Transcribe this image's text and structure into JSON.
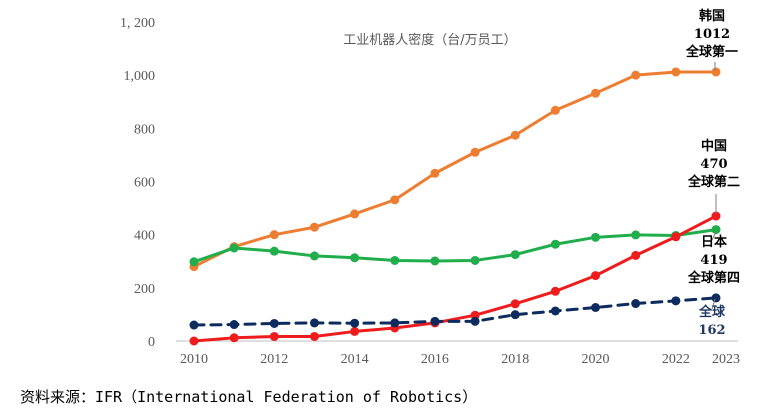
{
  "chart_data": {
    "type": "line",
    "title": "工业机器人密度（台/万员工）",
    "x": [
      2010,
      2011,
      2012,
      2013,
      2014,
      2015,
      2016,
      2017,
      2018,
      2019,
      2020,
      2021,
      2022,
      2023
    ],
    "xticks": [
      "2010",
      "2012",
      "2014",
      "2016",
      "2018",
      "2020",
      "2022",
      "2023"
    ],
    "ylim": [
      0,
      1200
    ],
    "yticks": [
      "0",
      "200",
      "400",
      "600",
      "800",
      "1,000",
      "1, 200"
    ],
    "series": [
      {
        "name": "韩国",
        "color": "#ED7D31",
        "dashed": false,
        "values": [
          280,
          355,
          400,
          428,
          478,
          531,
          631,
          710,
          774,
          868,
          932,
          1000,
          1012,
          1012
        ]
      },
      {
        "name": "日本",
        "color": "#1FAE4B",
        "dashed": false,
        "values": [
          298,
          350,
          338,
          320,
          313,
          303,
          301,
          303,
          325,
          364,
          390,
          399,
          397,
          419
        ]
      },
      {
        "name": "中国",
        "color": "#EE1C1C",
        "dashed": false,
        "values": [
          0,
          12,
          17,
          17,
          36,
          49,
          68,
          97,
          140,
          187,
          246,
          322,
          392,
          470
        ]
      },
      {
        "name": "全球",
        "color": "#0D2B5E",
        "dashed": true,
        "values": [
          60,
          62,
          66,
          68,
          67,
          68,
          74,
          74,
          99,
          113,
          126,
          141,
          151,
          162
        ]
      }
    ],
    "annotations": [
      {
        "series": "韩国",
        "lines": [
          "韩国",
          "1012",
          "全球第一"
        ],
        "color": "#000000"
      },
      {
        "series": "中国",
        "lines": [
          "中国",
          "470",
          "全球第二"
        ],
        "color": "#000000"
      },
      {
        "series": "日本",
        "lines": [
          "日本",
          "419",
          "全球第四"
        ],
        "color": "#000000"
      },
      {
        "series": "全球",
        "lines": [
          "全球",
          "162"
        ],
        "color": "#1F3864"
      }
    ]
  },
  "source": "资料来源：IFR（International Federation of Robotics）"
}
